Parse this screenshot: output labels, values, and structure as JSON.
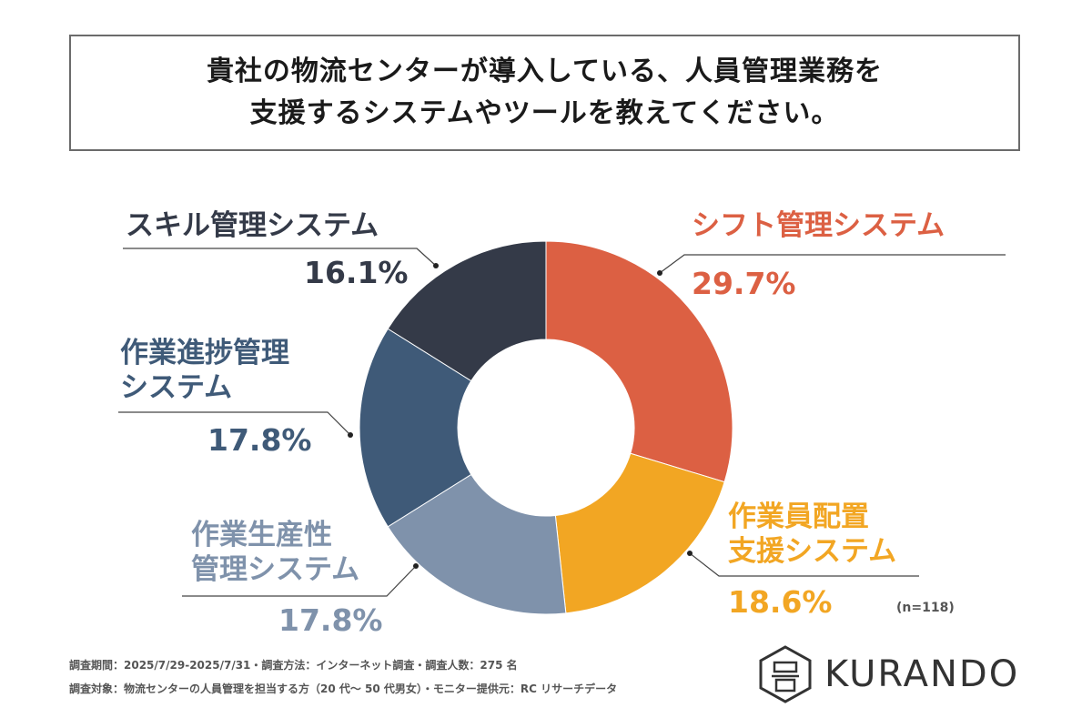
{
  "title": {
    "line1": "貴社の物流センターが導入している、人員管理業務を",
    "line2": "支援するシステムやツールを教えてください。"
  },
  "chart_data": {
    "type": "pie",
    "donut": true,
    "unit": "%",
    "slices": [
      {
        "label": "シフト管理システム",
        "value": 29.7,
        "display": "29.7%",
        "color": "#dc6043"
      },
      {
        "label": "作業員配置支援システム",
        "value": 18.6,
        "display": "18.6%",
        "color": "#f2a623"
      },
      {
        "label": "作業生産性管理システム",
        "value": 17.8,
        "display": "17.8%",
        "color": "#7f92ab"
      },
      {
        "label": "作業進捗管理システム",
        "value": 17.8,
        "display": "17.8%",
        "color": "#3f5a78"
      },
      {
        "label": "スキル管理システム",
        "value": 16.1,
        "display": "16.1%",
        "color": "#343a48"
      }
    ]
  },
  "labels": {
    "shift": {
      "line1": "シフト管理システム",
      "pct": "29.7%",
      "color": "#dc6043"
    },
    "haichi": {
      "line1": "作業員配置",
      "line2": "支援システム",
      "pct": "18.6%",
      "color": "#f2a623"
    },
    "seisansei": {
      "line1": "作業生産性",
      "line2": "管理システム",
      "pct": "17.8%",
      "color": "#7f92ab"
    },
    "shinchoku": {
      "line1": "作業進捗管理",
      "line2": "システム",
      "pct": "17.8%",
      "color": "#3f5a78"
    },
    "skill": {
      "line1": "スキル管理システム",
      "pct": "16.1%",
      "color": "#343a48"
    }
  },
  "sample_note": "(n=118)",
  "footnotes": {
    "line1": "調査期間：2025/7/29-2025/7/31・調査方法：インターネット調査・調査人数：275 名",
    "line2": "調査対象：物流センターの人員管理を担当する方（20 代〜 50 代男女）・モニター提供元：RC リサーチデータ"
  },
  "logo": {
    "text": "KURANDO",
    "icon": "kurando-logo-icon"
  }
}
